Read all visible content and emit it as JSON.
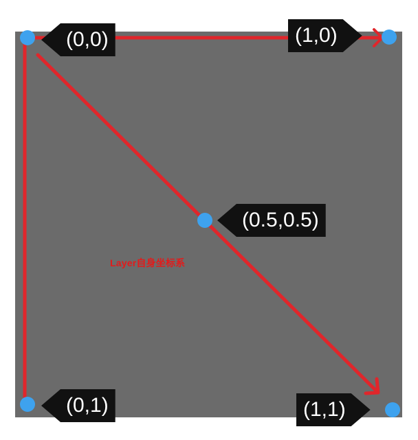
{
  "labels": {
    "origin": "(0,0)",
    "top_right": "(1,0)",
    "center": "(0.5,0.5)",
    "bottom_left": "(0,1)",
    "bottom_right": "(1,1)"
  },
  "caption": "Layer自身坐标系",
  "colors": {
    "layer_background": "#6b6b6b",
    "arrow": "#e0262b",
    "point": "#3ea2ee",
    "tag_background": "#111111",
    "caption": "#e21b1b"
  }
}
